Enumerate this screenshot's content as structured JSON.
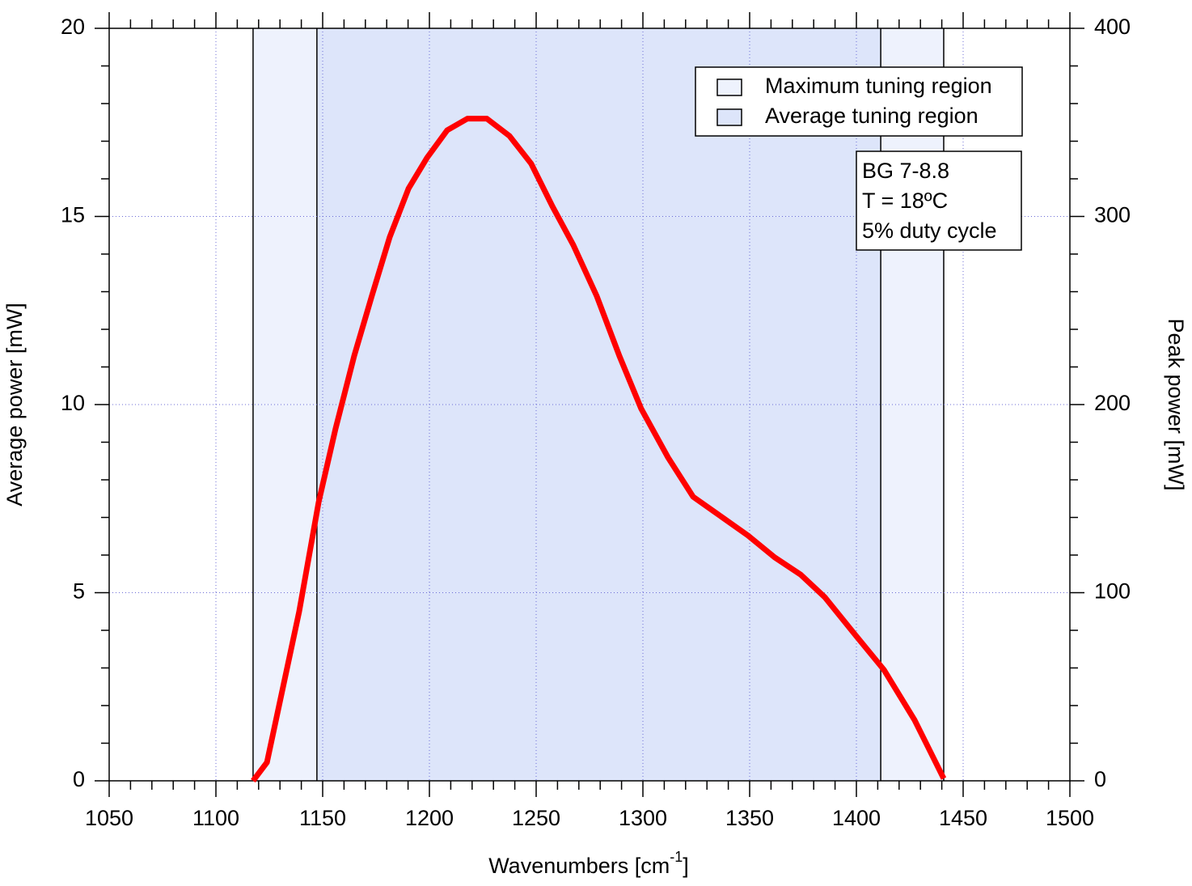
{
  "chart_data": {
    "type": "line",
    "xlabel": {
      "text": "Wavenumbers [cm",
      "superscript": "-1",
      "suffix": "]"
    },
    "ylabel": "Average power [mW]",
    "y2label": "Peak power [mW]",
    "xlim": [
      1050,
      1500
    ],
    "xticks": [
      1050,
      1100,
      1150,
      1200,
      1250,
      1300,
      1350,
      1400,
      1450,
      1500
    ],
    "ylim": [
      0,
      20
    ],
    "yticks": [
      0,
      5,
      10,
      15,
      20
    ],
    "y2lim": [
      0,
      400
    ],
    "y2ticks": [
      0,
      100,
      200,
      300,
      400
    ],
    "grid": true,
    "regions": [
      {
        "name": "Maximum tuning region",
        "range": [
          1117.4,
          1440.9
        ],
        "color": "#eef2fd"
      },
      {
        "name": "Average tuning region",
        "range": [
          1147.3,
          1411.4
        ],
        "color": "#dde5fa"
      }
    ],
    "legend": "upper right",
    "annotation": [
      "BG 7-8.8",
      "T = 18ºC",
      "5% duty cycle"
    ],
    "series": [
      {
        "color": "#ff0000",
        "x": [
          1117.4,
          1123.9,
          1139,
          1148.1,
          1156,
          1164.8,
          1173.1,
          1181.4,
          1190.2,
          1198.9,
          1208.3,
          1217.8,
          1226.9,
          1237.5,
          1247.7,
          1257.6,
          1267.4,
          1278.4,
          1289,
          1299.2,
          1311.7,
          1323.5,
          1336,
          1349.2,
          1361.7,
          1373.9,
          1385.2,
          1399.6,
          1412.9,
          1427.3,
          1440.9
        ],
        "values": [
          0,
          0.49,
          4.5,
          7.4,
          9.35,
          11.3,
          12.9,
          14.45,
          15.74,
          16.56,
          17.29,
          17.6,
          17.6,
          17.14,
          16.4,
          15.27,
          14.24,
          12.88,
          11.29,
          9.89,
          8.6,
          7.55,
          7.05,
          6.52,
          5.94,
          5.48,
          4.88,
          3.87,
          2.95,
          1.61,
          0.06
        ]
      }
    ]
  }
}
